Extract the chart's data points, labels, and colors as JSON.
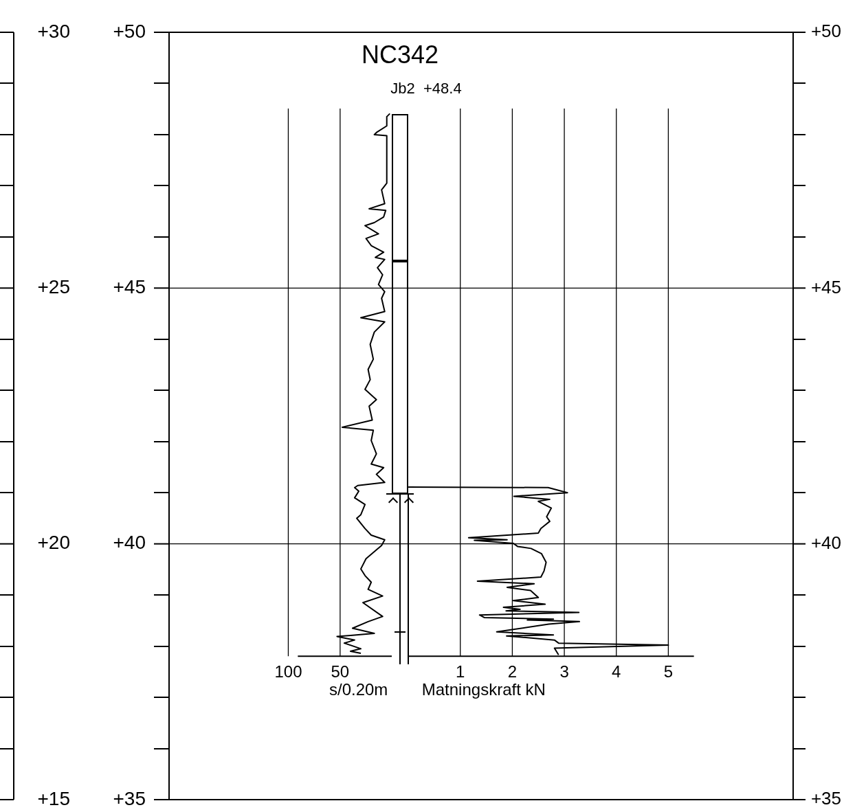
{
  "chart_data": {
    "type": "line",
    "title": "NC342",
    "subtitle": "Jb2  +48.4",
    "xlabel": "Matningskraft kN",
    "x2label": "s/0.20m",
    "grid": true,
    "xlim": [
      -4.6,
      7.4
    ],
    "xticks": [
      1,
      2,
      3,
      4,
      5
    ],
    "x2lim": [
      215,
      -387
    ],
    "x2ticks": [
      100,
      50
    ],
    "ylim": [
      35,
      50
    ],
    "yticks": [
      {
        "value": 35,
        "label": "+35"
      },
      {
        "value": 40,
        "label": "+40"
      },
      {
        "value": 45,
        "label": "+45"
      },
      {
        "value": 50,
        "label": "+50"
      }
    ],
    "y2lim": [
      15,
      30
    ],
    "y2ticks": [
      {
        "value": 15,
        "label": "+15"
      },
      {
        "value": 20,
        "label": "+20"
      },
      {
        "value": 25,
        "label": "+25"
      },
      {
        "value": 30,
        "label": "+30"
      }
    ],
    "y3lim": [
      35,
      50
    ],
    "y3ticks": [
      {
        "value": 35,
        "label": "+35"
      },
      {
        "value": 40,
        "label": "+40"
      },
      {
        "value": 45,
        "label": "+45"
      },
      {
        "value": 50,
        "label": "+50"
      }
    ],
    "series": [
      {
        "color": "#000000",
        "axis": "x2",
        "x": [
          2,
          5,
          5,
          15,
          17,
          5,
          5,
          10,
          7,
          22,
          6,
          8,
          17,
          26,
          13,
          25,
          20,
          8,
          16,
          7,
          14,
          9,
          13,
          7,
          10,
          7,
          30,
          7,
          17,
          21,
          18,
          23,
          21,
          26,
          15,
          22,
          19,
          48,
          18,
          20,
          15,
          20,
          8,
          15,
          7,
          33,
          36,
          32,
          36,
          26,
          30,
          34,
          26,
          20,
          7,
          10,
          25,
          30,
          26,
          20,
          23,
          9,
          28,
          9,
          23,
          38,
          17,
          40,
          53,
          36,
          46,
          30,
          40,
          30
        ],
        "values": [
          48.41,
          48.35,
          48.17,
          48.04,
          48.0,
          47.98,
          47.05,
          46.92,
          46.65,
          46.55,
          46.52,
          46.39,
          46.28,
          46.22,
          46.06,
          45.97,
          45.83,
          45.7,
          45.6,
          45.56,
          45.4,
          45.26,
          45.07,
          44.93,
          44.8,
          44.54,
          44.42,
          44.34,
          44.14,
          43.9,
          43.61,
          43.41,
          43.21,
          43.02,
          42.82,
          42.69,
          42.42,
          42.28,
          42.22,
          42.02,
          41.76,
          41.56,
          41.49,
          41.36,
          41.2,
          41.14,
          41.1,
          41.03,
          40.9,
          40.77,
          40.57,
          40.5,
          40.3,
          40.17,
          40.08,
          39.97,
          39.71,
          39.51,
          39.38,
          39.25,
          39.11,
          38.98,
          38.85,
          38.58,
          38.48,
          38.35,
          38.25,
          38.21,
          38.19,
          38.12,
          38.06,
          37.95,
          37.9,
          37.86
        ]
      },
      {
        "color": "#000000",
        "x": [
          0,
          2.69,
          3.06,
          2.03,
          2.72,
          2.5,
          2.75,
          2.66,
          2.72,
          2.55,
          2.5,
          1.16,
          1.9,
          1.27,
          2.02,
          2.1,
          2.36,
          2.56,
          2.65,
          2.61,
          2.55,
          1.33,
          2.42,
          1.9,
          2.35,
          2.5,
          2.02,
          2.63,
          1.83,
          2.15,
          1.88,
          3.28,
          1.37,
          1.46,
          2.79,
          2.29,
          3.29,
          2.7,
          1.7,
          2.79,
          1.89,
          2.81,
          2.89,
          5.0,
          2.81,
          2.89
        ],
        "values": [
          41.11,
          41.1,
          41.0,
          40.93,
          40.87,
          40.83,
          40.7,
          40.53,
          40.44,
          40.3,
          40.21,
          40.12,
          40.08,
          40.07,
          40.01,
          39.95,
          39.91,
          39.81,
          39.64,
          39.47,
          39.35,
          39.27,
          39.22,
          39.15,
          39.09,
          38.95,
          38.89,
          38.82,
          38.76,
          38.72,
          38.69,
          38.66,
          38.61,
          38.56,
          38.53,
          38.51,
          38.48,
          38.43,
          38.28,
          38.22,
          38.2,
          38.12,
          38.06,
          38.02,
          37.96,
          37.83
        ]
      }
    ]
  }
}
